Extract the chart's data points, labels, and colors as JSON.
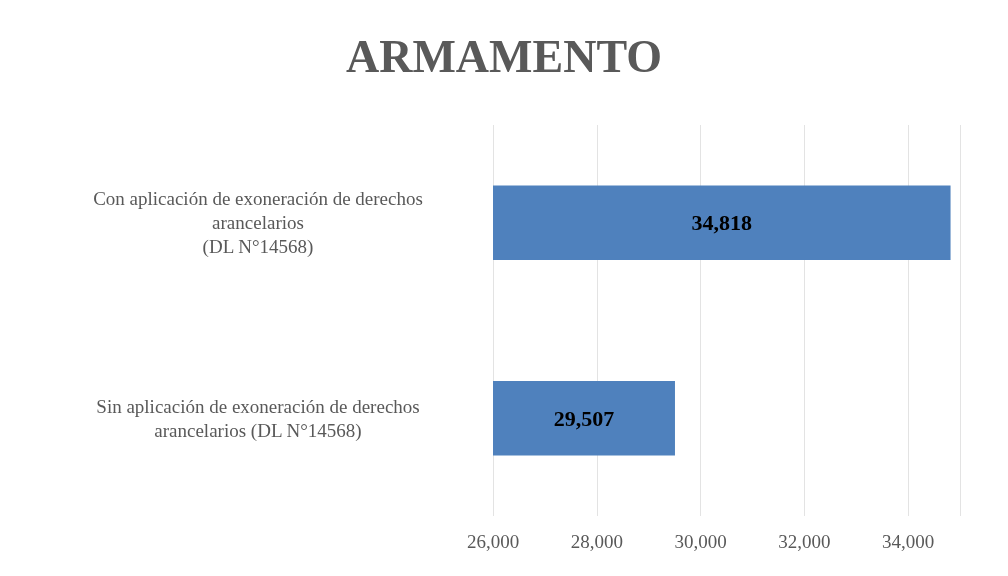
{
  "chart_data": {
    "type": "bar",
    "orientation": "horizontal",
    "title": "ARMAMENTO",
    "categories": [
      "Con aplicación de exoneración de derechos\narancelarios\n(DL N°14568)",
      "Sin aplicación de exoneración de derechos\narancelarios (DL N°14568)"
    ],
    "values": [
      34818,
      29507
    ],
    "value_labels": [
      "34,818",
      "29,507"
    ],
    "color": "#4f81bd",
    "xlim": [
      26000,
      35000
    ],
    "xticks": [
      {
        "value": 26000,
        "label": "26,000"
      },
      {
        "value": 28000,
        "label": "28,000"
      },
      {
        "value": 30000,
        "label": "30,000"
      },
      {
        "value": 32000,
        "label": "32,000"
      },
      {
        "value": 34000,
        "label": "34,000"
      }
    ],
    "grid": "x"
  }
}
